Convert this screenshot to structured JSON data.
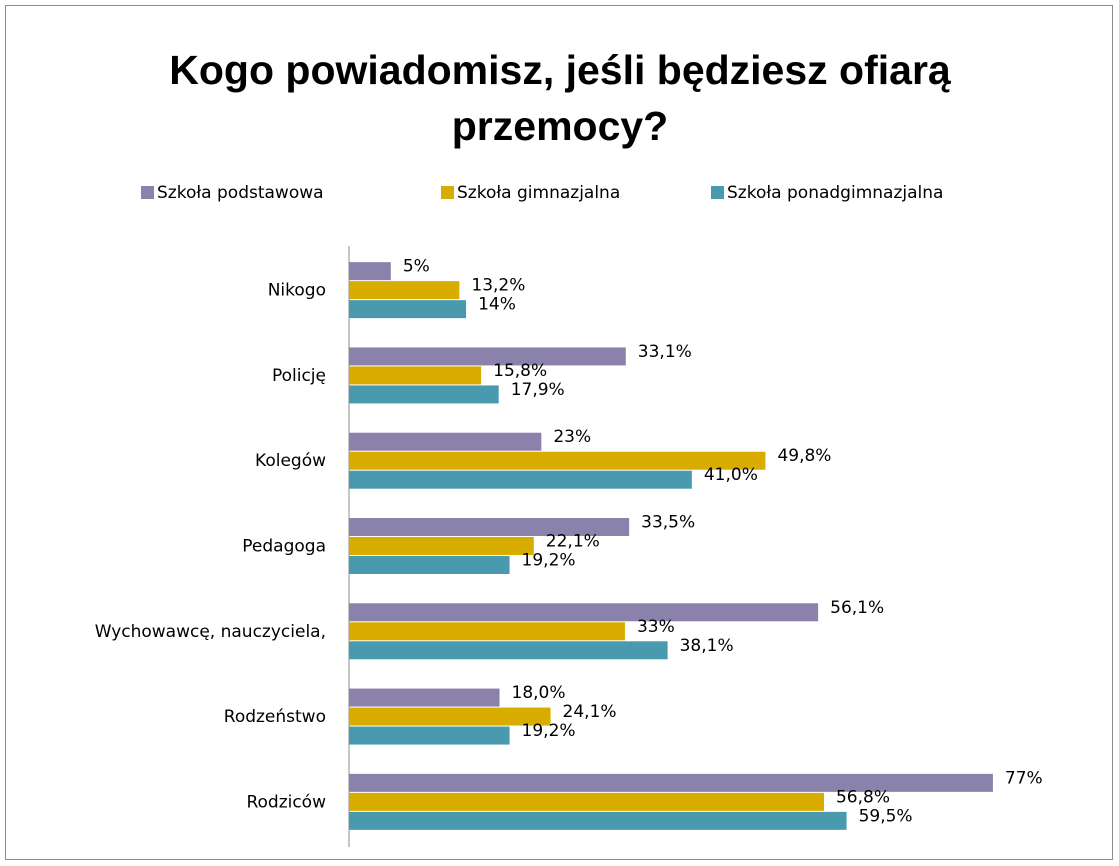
{
  "chart_data": {
    "type": "hbar",
    "title": "Kogo powiadomisz, jeśli będziesz ofiarą przemocy?",
    "categories": [
      "Nikogo",
      "Policję",
      "Kolegów",
      "Pedagoga",
      "Wychowawcę, nauczyciela,",
      "Rodzeństwo",
      "Rodziców"
    ],
    "series": [
      {
        "name": "Szkoła podstawowa",
        "color": "#8b82ab",
        "values": [
          5,
          33.1,
          23,
          33.5,
          56.1,
          18.0,
          77
        ],
        "value_labels": [
          "5%",
          "33,1%",
          "23%",
          "33,5%",
          "56,1%",
          "18,0%",
          "77%"
        ]
      },
      {
        "name": "Szkoła gimnazjalna",
        "color": "#d9ad00",
        "values": [
          13.2,
          15.8,
          49.8,
          22.1,
          33,
          24.1,
          56.8
        ],
        "value_labels": [
          "13,2%",
          "15,8%",
          "49,8%",
          "22,1%",
          "33%",
          "24,1%",
          "56,8%"
        ]
      },
      {
        "name": "Szkoła ponadgimnazjalna",
        "color": "#4a9aaf",
        "values": [
          14,
          17.9,
          41.0,
          19.2,
          38.1,
          19.2,
          59.5
        ],
        "value_labels": [
          "14%",
          "17,9%",
          "41,0%",
          "19,2%",
          "38,1%",
          "19,2%",
          "59,5%"
        ]
      }
    ],
    "xlim": [
      0,
      80
    ],
    "legend": "top"
  }
}
